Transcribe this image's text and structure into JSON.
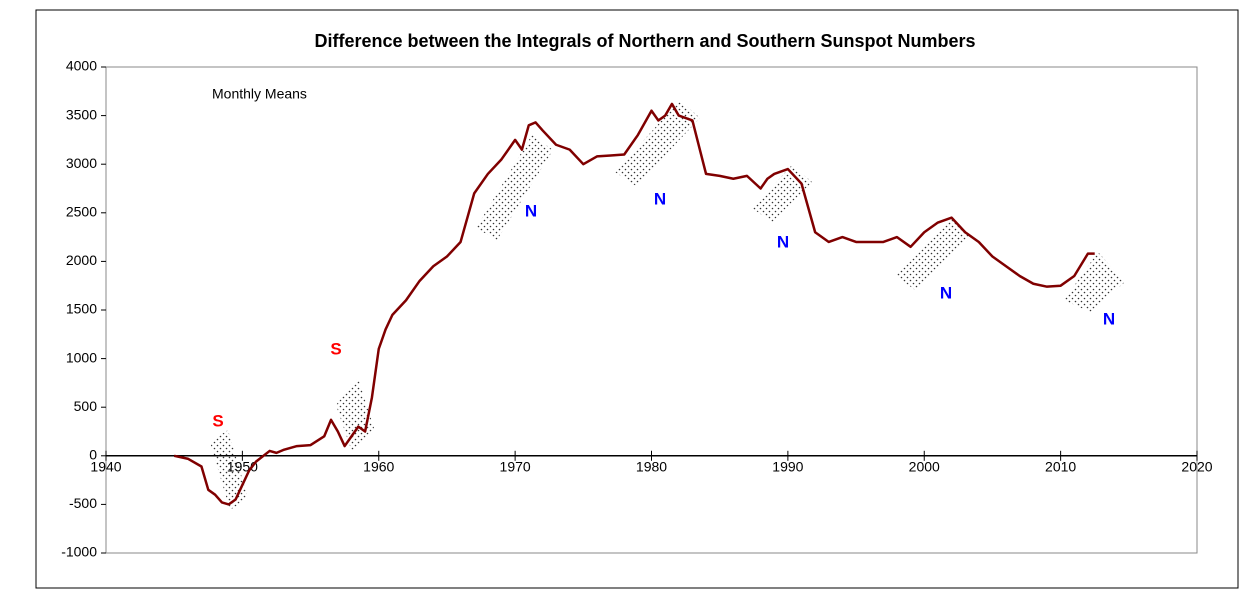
{
  "chart_data": {
    "type": "line",
    "title": "Difference between the Integrals of Northern and Southern Sunspot Numbers",
    "subtitle": "Monthly Means",
    "color": "#800000",
    "x": [
      1945,
      1946,
      1947,
      1947.5,
      1948,
      1948.5,
      1949,
      1949.5,
      1950,
      1950.5,
      1951,
      1952,
      1952.5,
      1953,
      1954,
      1955,
      1956,
      1956.5,
      1957,
      1957.5,
      1958,
      1958.5,
      1959,
      1959.5,
      1960,
      1960.5,
      1961,
      1962,
      1963,
      1964,
      1965,
      1966,
      1966.5,
      1967,
      1968,
      1969,
      1970,
      1970.5,
      1971,
      1971.5,
      1972,
      1973,
      1974,
      1975,
      1976,
      1977,
      1978,
      1979,
      1980,
      1980.5,
      1981,
      1981.5,
      1982,
      1983,
      1984,
      1985,
      1986,
      1987,
      1988,
      1988.5,
      1989,
      1990,
      1991,
      1992,
      1993,
      1994,
      1995,
      1997,
      1998,
      1999,
      2000,
      2001,
      2002,
      2003,
      2004,
      2005,
      2006,
      2007,
      2008,
      2009,
      2010,
      2011,
      2012,
      2012.5
    ],
    "values": [
      0,
      -30,
      -110,
      -350,
      -400,
      -480,
      -500,
      -450,
      -300,
      -150,
      -60,
      50,
      30,
      60,
      100,
      110,
      200,
      370,
      250,
      100,
      200,
      300,
      250,
      600,
      1100,
      1300,
      1450,
      1600,
      1800,
      1950,
      2050,
      2200,
      2450,
      2700,
      2900,
      3050,
      3250,
      3150,
      3400,
      3430,
      3350,
      3200,
      3150,
      3000,
      3080,
      3090,
      3100,
      3300,
      3550,
      3450,
      3500,
      3620,
      3500,
      3450,
      2900,
      2880,
      2850,
      2880,
      2750,
      2850,
      2900,
      2950,
      2800,
      2300,
      2200,
      2250,
      2200,
      2200,
      2250,
      2150,
      2300,
      2400,
      2450,
      2300,
      2200,
      2050,
      1950,
      1850,
      1770,
      1740,
      1750,
      1850,
      2080,
      2080
    ],
    "xlim": [
      1940,
      2020
    ],
    "xticks": [
      1940,
      1950,
      1960,
      1970,
      1980,
      1990,
      2000,
      2010,
      2020
    ],
    "ylim": [
      -1000,
      4000
    ],
    "yticks": [
      -1000,
      -500,
      0,
      500,
      1000,
      1500,
      2000,
      2500,
      3000,
      3500,
      4000
    ],
    "annotations": [
      {
        "text": "S",
        "color": "#ff0000"
      },
      {
        "text": "S",
        "color": "#ff0000"
      },
      {
        "text": "N",
        "color": "#0000ff"
      },
      {
        "text": "N",
        "color": "#0000ff"
      },
      {
        "text": "N",
        "color": "#0000ff"
      },
      {
        "text": "N",
        "color": "#0000ff"
      },
      {
        "text": "N",
        "color": "#0000ff"
      }
    ]
  }
}
